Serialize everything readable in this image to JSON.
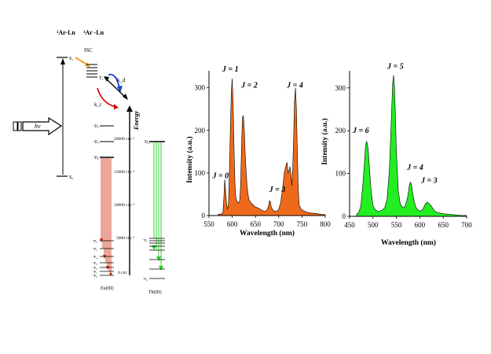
{
  "jablonski": {
    "col_left_label": "¹Ar-Ln",
    "col_right_label": "³Ar -Ln",
    "s1": "S₁",
    "isc": "ISC",
    "t1": "T₁",
    "kd": "k_d",
    "kr": "k_r",
    "s0": "S₀",
    "hv": "hv",
    "energy": "Energy",
    "eu_levels": [
      "⁵D₂",
      "⁵D₁",
      "⁵D₀"
    ],
    "eu_ground": [
      "⁷F₆",
      "⁷F₅",
      "⁷F₄",
      "⁷F₃",
      "⁷F₂",
      "⁷F₁",
      "⁷F₀"
    ],
    "tb_levels": [
      "⁵D₄"
    ],
    "tb_ground": [
      "⁷F₀",
      "⁷F₆"
    ],
    "energy_ticks": [
      "20000 cm⁻¹",
      "15000 cm⁻¹",
      "10000 cm⁻¹",
      "5000 cm⁻¹",
      "0 cm⁻¹"
    ],
    "eu_label": "Eu(III)",
    "tb_label": "Tb(III)",
    "colors": {
      "eu": "#cc2200",
      "tb": "#22cc22",
      "isc": "#f0a020",
      "kd": "#1144cc",
      "kr": "#cc0000"
    }
  },
  "chart_data": [
    {
      "type": "area",
      "ylabel": "Intensity (a.u.)",
      "xlabel": "Wavelength (nm)",
      "xlim": [
        550,
        800
      ],
      "ylim": [
        0,
        340
      ],
      "xticks": [
        550,
        600,
        650,
        700,
        750,
        800
      ],
      "yticks": [
        0,
        100,
        200,
        300
      ],
      "fill": "#ee6a1a",
      "x": [
        570,
        578,
        580,
        582,
        584,
        586,
        588,
        590,
        592,
        594,
        596,
        598,
        600,
        602,
        604,
        606,
        608,
        610,
        612,
        614,
        616,
        618,
        620,
        622,
        624,
        626,
        628,
        630,
        632,
        634,
        636,
        640,
        645,
        650,
        655,
        660,
        665,
        670,
        674,
        678,
        680,
        682,
        684,
        688,
        692,
        696,
        700,
        704,
        708,
        712,
        716,
        718,
        720,
        722,
        724,
        726,
        728,
        730,
        732,
        734,
        736,
        738,
        740,
        742,
        744,
        748,
        752,
        756,
        760,
        770,
        780,
        790,
        800
      ],
      "values": [
        3,
        4,
        8,
        40,
        85,
        55,
        25,
        15,
        30,
        100,
        200,
        290,
        322,
        260,
        150,
        70,
        40,
        35,
        30,
        30,
        35,
        70,
        160,
        230,
        235,
        200,
        140,
        100,
        70,
        50,
        38,
        30,
        25,
        20,
        18,
        15,
        12,
        10,
        12,
        22,
        35,
        33,
        20,
        12,
        10,
        10,
        15,
        30,
        60,
        100,
        120,
        125,
        100,
        105,
        115,
        100,
        70,
        110,
        180,
        270,
        300,
        250,
        150,
        60,
        25,
        15,
        12,
        10,
        8,
        6,
        5,
        3,
        2
      ],
      "annotations": [
        {
          "text": "J = 0",
          "x": 575,
          "y": 88
        },
        {
          "text": "J = 1",
          "x": 596,
          "y": 338
        },
        {
          "text": "J = 2",
          "x": 637,
          "y": 300
        },
        {
          "text": "J = 3",
          "x": 697,
          "y": 55
        },
        {
          "text": "J = 4",
          "x": 735,
          "y": 300
        }
      ]
    },
    {
      "type": "area",
      "ylabel": "Intensity (a.u.)",
      "xlabel": "Wavelength (nm)",
      "xlim": [
        450,
        700
      ],
      "ylim": [
        0,
        340
      ],
      "xticks": [
        450,
        500,
        550,
        600,
        650,
        700
      ],
      "yticks": [
        0,
        100,
        200,
        300
      ],
      "fill": "#22ee22",
      "x": [
        465,
        470,
        474,
        478,
        482,
        484,
        486,
        488,
        490,
        492,
        496,
        500,
        505,
        510,
        515,
        520,
        525,
        530,
        535,
        540,
        542,
        544,
        546,
        548,
        550,
        554,
        558,
        562,
        566,
        570,
        574,
        578,
        580,
        582,
        584,
        588,
        592,
        596,
        600,
        604,
        608,
        612,
        616,
        620,
        624,
        628,
        632,
        640,
        650,
        660,
        670,
        680,
        690,
        700
      ],
      "values": [
        5,
        10,
        25,
        70,
        130,
        165,
        175,
        170,
        155,
        120,
        60,
        25,
        15,
        12,
        12,
        15,
        20,
        40,
        110,
        250,
        310,
        330,
        300,
        230,
        150,
        60,
        30,
        22,
        20,
        28,
        45,
        75,
        80,
        75,
        60,
        35,
        20,
        15,
        12,
        14,
        20,
        30,
        33,
        30,
        25,
        18,
        12,
        8,
        6,
        5,
        4,
        3,
        2,
        2
      ],
      "annotations": [
        {
          "text": "J = 6",
          "x": 474,
          "y": 195
        },
        {
          "text": "J = 5",
          "x": 548,
          "y": 345
        },
        {
          "text": "J = 4",
          "x": 590,
          "y": 108
        },
        {
          "text": "J = 3",
          "x": 620,
          "y": 78
        }
      ]
    }
  ]
}
